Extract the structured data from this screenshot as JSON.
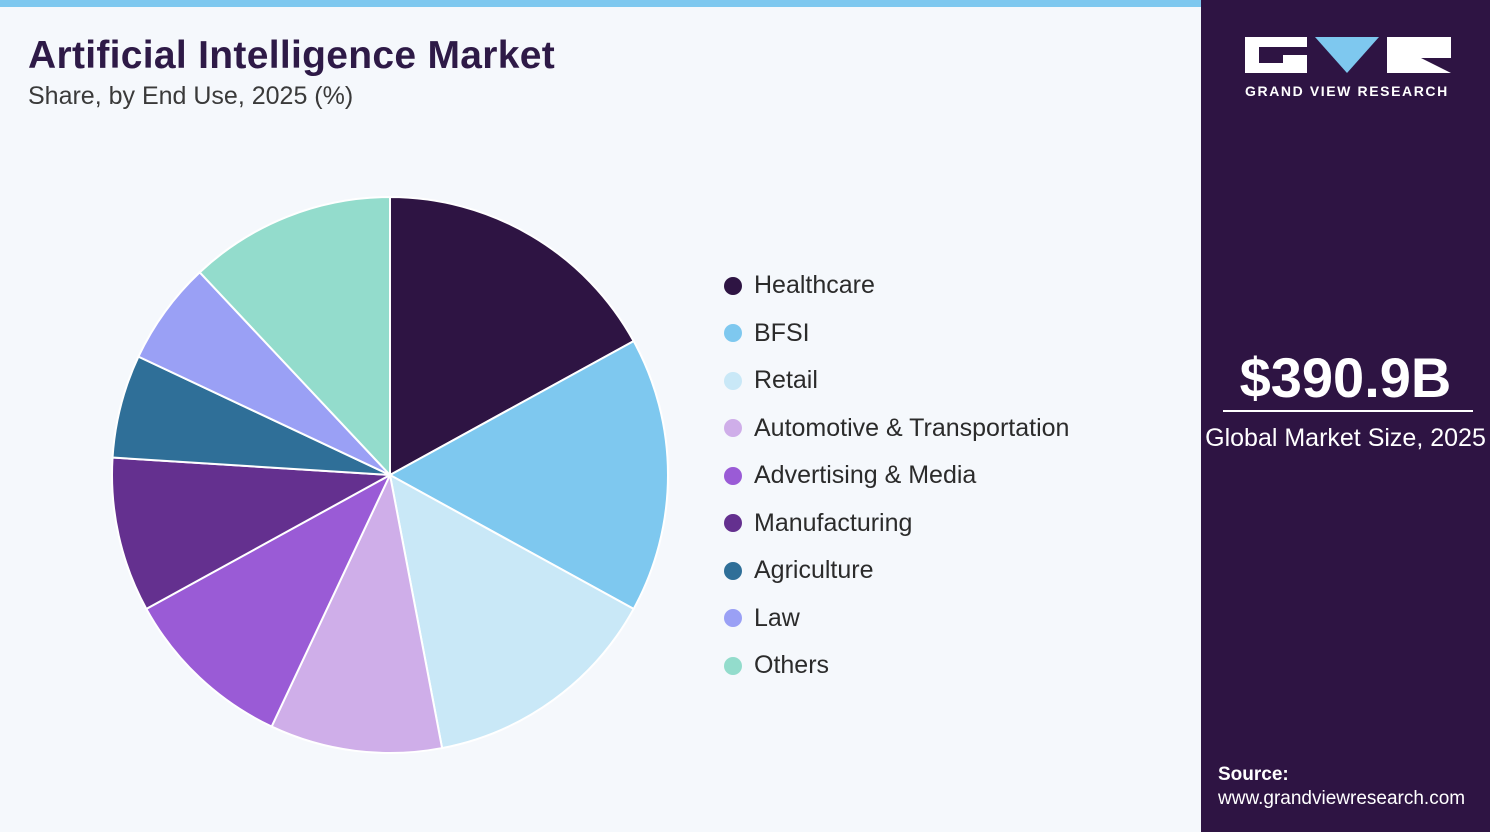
{
  "header": {
    "title": "Artificial Intelligence Market",
    "subtitle": "Share, by End Use, 2025 (%)"
  },
  "brand": {
    "name": "GRAND VIEW RESEARCH",
    "colors": {
      "panel": "#2e1443",
      "accent": "#7ec8ef"
    }
  },
  "sidebar": {
    "market_size": "$390.9B",
    "market_label": "Global Market Size, 2025",
    "source_label": "Source:",
    "source_url": "www.grandviewresearch.com"
  },
  "chart_data": {
    "type": "pie",
    "title": "Artificial Intelligence Market",
    "subtitle": "Share, by End Use, 2025 (%)",
    "legend_position": "right",
    "start_angle_deg": 0,
    "direction": "clockwise",
    "slices": [
      {
        "label": "Healthcare",
        "value": 17,
        "color": "#2e1443"
      },
      {
        "label": "BFSI",
        "value": 16,
        "color": "#7ec8ef"
      },
      {
        "label": "Retail",
        "value": 14,
        "color": "#c9e8f7"
      },
      {
        "label": "Automotive & Transportation",
        "value": 10,
        "color": "#cfaee9"
      },
      {
        "label": "Advertising & Media",
        "value": 10,
        "color": "#9a5bd6"
      },
      {
        "label": "Manufacturing",
        "value": 9,
        "color": "#64308f"
      },
      {
        "label": "Agriculture",
        "value": 6,
        "color": "#2f6f98"
      },
      {
        "label": "Law",
        "value": 6,
        "color": "#9aa0f5"
      },
      {
        "label": "Others",
        "value": 12,
        "color": "#93dccc"
      }
    ]
  }
}
